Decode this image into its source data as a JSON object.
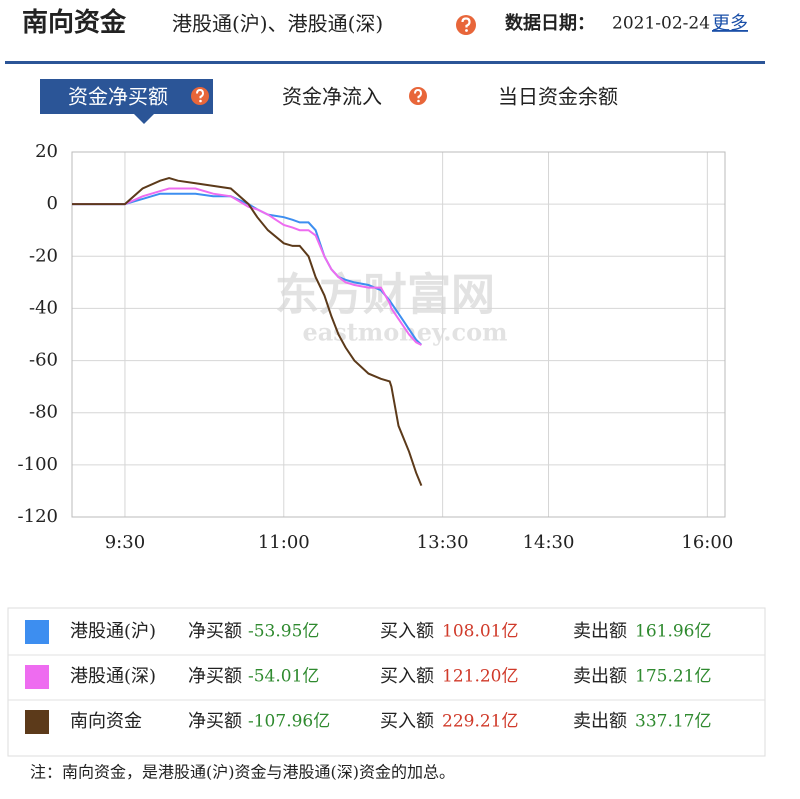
{
  "header": {
    "title": "南向资金",
    "subtitle": "港股通(沪)、港股通(深)",
    "date_label": "数据日期：",
    "date": "2021-02-24",
    "more": "更多"
  },
  "tabs": [
    "资金净买额",
    "资金净流入",
    "当日资金余额"
  ],
  "chart_data": {
    "type": "line",
    "watermark": "东方财富网",
    "watermark_sub": "eastmoney.com",
    "x": [
      0,
      30,
      40,
      50,
      55,
      60,
      70,
      80,
      90,
      100,
      105,
      111,
      120,
      125,
      129,
      134,
      138,
      143,
      147,
      151,
      155,
      160,
      168,
      175,
      180,
      181,
      185,
      191,
      195,
      198
    ],
    "xlim": [
      0,
      370
    ],
    "xticks": [
      {
        "value": 30,
        "label": "9:30"
      },
      {
        "value": 120,
        "label": "11:00"
      },
      {
        "value": 210,
        "label": "13:30"
      },
      {
        "value": 270,
        "label": "14:30"
      },
      {
        "value": 360,
        "label": "16:00"
      }
    ],
    "ylim": [
      -120,
      20
    ],
    "yticks": [
      20,
      0,
      -20,
      -40,
      -60,
      -80,
      -100,
      -120
    ],
    "grid": true,
    "series": [
      {
        "name": "港股通(沪)",
        "color": "#3d8ef0",
        "values": [
          0,
          0,
          2,
          4,
          4,
          4,
          4,
          3,
          3,
          0,
          -2,
          -4,
          -5,
          -6,
          -7,
          -7,
          -10,
          -20,
          -25,
          -28,
          -29,
          -30,
          -31,
          -33,
          -37,
          -38,
          -42,
          -48,
          -52,
          -53.95
        ]
      },
      {
        "name": "港股通(深)",
        "color": "#ee6cf0",
        "values": [
          0,
          0,
          3,
          5,
          6,
          6,
          6,
          4,
          3,
          -1,
          -2,
          -4,
          -8,
          -9,
          -10,
          -10,
          -12,
          -20,
          -25,
          -28,
          -30,
          -31,
          -32,
          -32,
          -38,
          -40,
          -44,
          -50,
          -53,
          -54.01
        ]
      },
      {
        "name": "南向资金",
        "color": "#5c3a1a",
        "values": [
          0,
          0,
          6,
          9,
          10,
          9,
          8,
          7,
          6,
          0,
          -5,
          -10,
          -15,
          -16,
          -16,
          -20,
          -28,
          -35,
          -43,
          -50,
          -55,
          -60,
          -65,
          -67,
          -68,
          -70,
          -85,
          -95,
          -103,
          -107.96
        ]
      }
    ]
  },
  "legend_table": {
    "rows": [
      {
        "net_label": "净买额",
        "net": "-53.95亿",
        "buy_label": "买入额",
        "buy": "108.01亿",
        "sell_label": "卖出额",
        "sell": "161.96亿"
      },
      {
        "net_label": "净买额",
        "net": "-54.01亿",
        "buy_label": "买入额",
        "buy": "121.20亿",
        "sell_label": "卖出额",
        "sell": "175.21亿"
      },
      {
        "net_label": "净买额",
        "net": "-107.96亿",
        "buy_label": "买入额",
        "buy": "229.21亿",
        "sell_label": "卖出额",
        "sell": "337.17亿"
      }
    ],
    "note": "注：南向资金，是港股通(沪)资金与港股通(深)资金的加总。"
  }
}
